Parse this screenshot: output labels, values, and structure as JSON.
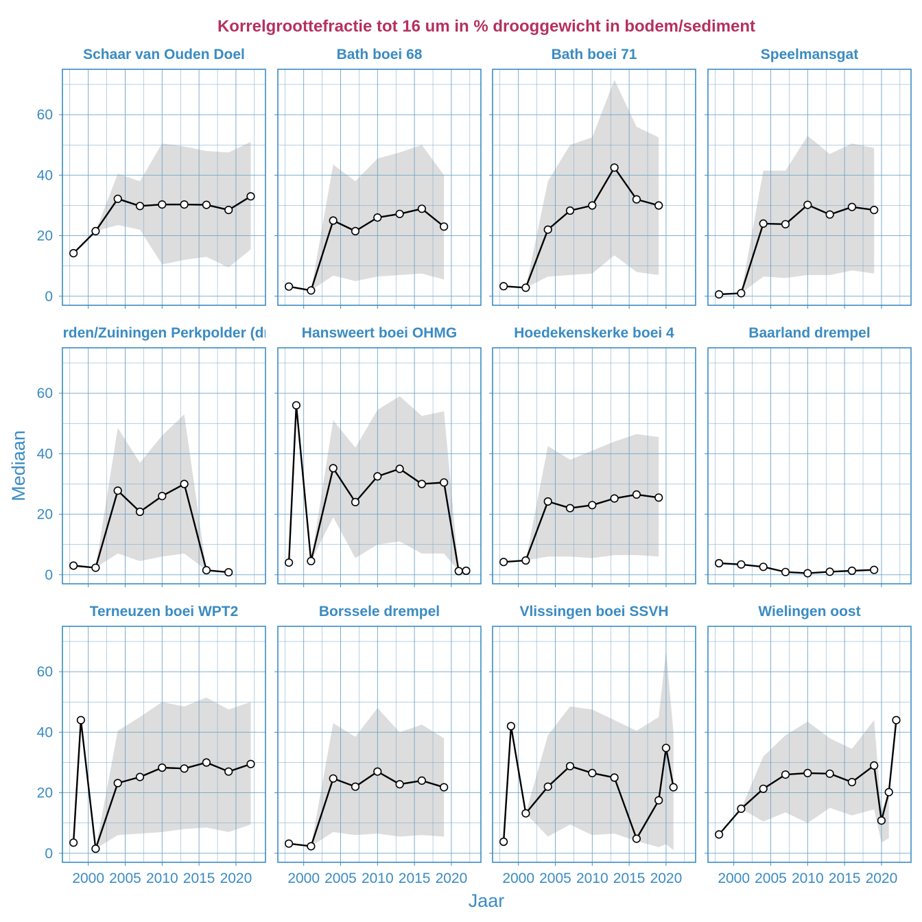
{
  "chart_data": {
    "type": "line",
    "title": "Korrelgroottefractie tot 16 um in % drooggewicht in bodem/sediment",
    "xlabel": "Jaar",
    "ylabel": "Mediaan",
    "xlim": [
      1996.5,
      2024
    ],
    "ylim": [
      -3,
      75
    ],
    "x_ticks": [
      2000,
      2005,
      2010,
      2015,
      2020
    ],
    "y_ticks": [
      0,
      20,
      40,
      60
    ],
    "grid": true,
    "colors": {
      "line": "#000000",
      "ribbon": "#dddddd",
      "grid": "#6fa3c9",
      "border": "#3a8bc2"
    },
    "panels": [
      {
        "name": "Schaar van Ouden Doel",
        "x": [
          1998,
          2001,
          2004,
          2007,
          2010,
          2013,
          2016,
          2019,
          2022
        ],
        "y": [
          14.2,
          21.5,
          32.2,
          29.8,
          30.3,
          30.3,
          30.2,
          28.5,
          33.0
        ],
        "ribbon_x": [
          2001,
          2004,
          2007,
          2010,
          2013,
          2016,
          2019,
          2022
        ],
        "ribbon_low": [
          21.5,
          23.5,
          22.0,
          10.5,
          12.0,
          13.0,
          9.5,
          15.5
        ],
        "ribbon_high": [
          21.5,
          40.5,
          38.0,
          50.5,
          49.5,
          48.0,
          47.5,
          51.0
        ]
      },
      {
        "name": "Bath boei 68",
        "x": [
          1998,
          2001,
          2004,
          2007,
          2010,
          2013,
          2016,
          2019
        ],
        "y": [
          3.2,
          1.9,
          25.0,
          21.5,
          26.0,
          27.2,
          28.9,
          23.0
        ],
        "ribbon_x": [
          2001,
          2004,
          2007,
          2010,
          2013,
          2016,
          2019
        ],
        "ribbon_low": [
          1.9,
          6.8,
          5.0,
          6.5,
          7.0,
          7.5,
          5.5
        ],
        "ribbon_high": [
          1.9,
          43.5,
          38.0,
          45.5,
          47.5,
          50.0,
          40.0
        ]
      },
      {
        "name": "Bath boei 71",
        "x": [
          1998,
          2001,
          2004,
          2007,
          2010,
          2013,
          2016,
          2019
        ],
        "y": [
          3.3,
          2.8,
          22.0,
          28.3,
          30.0,
          42.5,
          32.0,
          30.0
        ],
        "ribbon_x": [
          2001,
          2004,
          2007,
          2010,
          2013,
          2016,
          2019
        ],
        "ribbon_low": [
          2.8,
          6.5,
          7.0,
          7.5,
          13.5,
          8.0,
          7.0
        ],
        "ribbon_high": [
          2.8,
          38.0,
          50.0,
          52.5,
          71.5,
          56.0,
          52.5
        ]
      },
      {
        "name": "Speelmansgat",
        "x": [
          1998,
          2001,
          2004,
          2007,
          2010,
          2013,
          2016,
          2019
        ],
        "y": [
          0.6,
          1.0,
          24.0,
          23.8,
          30.2,
          27.0,
          29.5,
          28.5
        ],
        "ribbon_x": [
          2001,
          2004,
          2007,
          2010,
          2013,
          2016,
          2019
        ],
        "ribbon_low": [
          1.0,
          6.5,
          6.0,
          7.0,
          7.0,
          8.5,
          7.5
        ],
        "ribbon_high": [
          1.0,
          41.5,
          41.5,
          53.0,
          47.0,
          50.5,
          49.0
        ]
      },
      {
        "name": "Walsoorden/Zuiningen Perkpolder (drempel)",
        "x": [
          1998,
          2001,
          2004,
          2007,
          2010,
          2013,
          2016,
          2019
        ],
        "y": [
          3.0,
          2.3,
          27.8,
          20.8,
          26.0,
          30.0,
          1.5,
          0.8
        ],
        "ribbon_x": [
          2001,
          2004,
          2007,
          2010,
          2013,
          2016
        ],
        "ribbon_low": [
          2.3,
          7.0,
          4.5,
          6.0,
          7.0,
          1.5
        ],
        "ribbon_high": [
          2.3,
          48.5,
          37.0,
          46.0,
          53.0,
          1.5
        ]
      },
      {
        "name": "Hansweert boei OHMG",
        "x": [
          1998,
          1999,
          2001,
          2004,
          2007,
          2010,
          2013,
          2016,
          2019,
          2021,
          2022
        ],
        "y": [
          4.0,
          56.0,
          4.5,
          35.2,
          24.0,
          32.5,
          35.0,
          30.0,
          30.5,
          1.2,
          1.3
        ],
        "ribbon_x": [
          2001,
          2004,
          2007,
          2010,
          2013,
          2016,
          2019,
          2021
        ],
        "ribbon_low": [
          4.5,
          19.0,
          5.5,
          10.0,
          11.0,
          7.0,
          7.0,
          1.2
        ],
        "ribbon_high": [
          4.5,
          51.0,
          42.0,
          54.5,
          59.0,
          52.5,
          54.0,
          1.2
        ]
      },
      {
        "name": "Hoedekenskerke boei 4",
        "x": [
          1998,
          2001,
          2004,
          2007,
          2010,
          2013,
          2016,
          2019
        ],
        "y": [
          4.2,
          4.7,
          24.2,
          22.0,
          23.0,
          25.2,
          26.5,
          25.5
        ],
        "ribbon_x": [
          2001,
          2004,
          2007,
          2010,
          2013,
          2016,
          2019
        ],
        "ribbon_low": [
          4.7,
          6.0,
          6.0,
          5.5,
          6.5,
          6.5,
          6.0
        ],
        "ribbon_high": [
          4.7,
          42.5,
          38.0,
          41.0,
          44.0,
          46.5,
          45.5
        ]
      },
      {
        "name": "Baarland drempel",
        "x": [
          1998,
          2001,
          2004,
          2007,
          2010,
          2013,
          2016,
          2019
        ],
        "y": [
          3.8,
          3.4,
          2.6,
          0.9,
          0.5,
          1.0,
          1.3,
          1.6
        ],
        "ribbon_x": [],
        "ribbon_low": [],
        "ribbon_high": []
      },
      {
        "name": "Terneuzen boei WPT2",
        "x": [
          1998,
          1999,
          2001,
          2004,
          2007,
          2010,
          2013,
          2016,
          2019,
          2022
        ],
        "y": [
          3.5,
          44.0,
          1.5,
          23.2,
          25.2,
          28.3,
          28.0,
          30.0,
          27.0,
          29.5
        ],
        "ribbon_x": [
          2001,
          2004,
          2007,
          2010,
          2013,
          2016,
          2019,
          2022
        ],
        "ribbon_low": [
          1.5,
          6.0,
          6.5,
          7.0,
          8.0,
          8.5,
          7.0,
          9.5
        ],
        "ribbon_high": [
          1.5,
          40.5,
          45.0,
          50.0,
          48.5,
          51.5,
          47.5,
          50.0
        ]
      },
      {
        "name": "Borssele drempel",
        "x": [
          1998,
          2001,
          2004,
          2007,
          2010,
          2013,
          2016,
          2019
        ],
        "y": [
          3.2,
          2.3,
          24.7,
          22.0,
          27.0,
          22.8,
          24.0,
          21.8
        ],
        "ribbon_x": [
          2001,
          2004,
          2007,
          2010,
          2013,
          2016,
          2019
        ],
        "ribbon_low": [
          2.3,
          7.0,
          6.0,
          6.5,
          5.5,
          6.0,
          5.5
        ],
        "ribbon_high": [
          2.3,
          43.0,
          38.5,
          48.0,
          40.0,
          42.5,
          38.0
        ]
      },
      {
        "name": "Vlissingen boei SSVH",
        "x": [
          1998,
          1999,
          2001,
          2004,
          2007,
          2010,
          2013,
          2016,
          2019,
          2020,
          2021
        ],
        "y": [
          3.8,
          42.0,
          13.2,
          22.0,
          28.8,
          26.5,
          25.0,
          4.8,
          17.5,
          34.8,
          21.8
        ],
        "ribbon_x": [
          2001,
          2004,
          2007,
          2010,
          2013,
          2016,
          2019,
          2020,
          2021
        ],
        "ribbon_low": [
          13.2,
          5.5,
          9.5,
          6.0,
          6.5,
          4.0,
          2.0,
          3.0,
          1.0
        ],
        "ribbon_high": [
          13.2,
          39.0,
          48.5,
          47.5,
          44.0,
          40.5,
          45.0,
          67.0,
          40.0
        ]
      },
      {
        "name": "Wielingen oost",
        "x": [
          1998,
          2001,
          2004,
          2007,
          2010,
          2013,
          2016,
          2019,
          2020,
          2021,
          2022
        ],
        "y": [
          6.2,
          14.7,
          21.3,
          26.0,
          26.5,
          26.3,
          23.5,
          29.0,
          10.8,
          20.2,
          44.0
        ],
        "ribbon_x": [
          2001,
          2004,
          2007,
          2010,
          2013,
          2016,
          2019,
          2020,
          2021
        ],
        "ribbon_low": [
          14.7,
          10.5,
          13.5,
          10.0,
          15.0,
          12.5,
          14.5,
          3.5,
          5.0
        ],
        "ribbon_high": [
          14.7,
          32.0,
          39.0,
          43.5,
          38.0,
          34.5,
          44.0,
          14.0,
          20.2
        ]
      }
    ]
  }
}
